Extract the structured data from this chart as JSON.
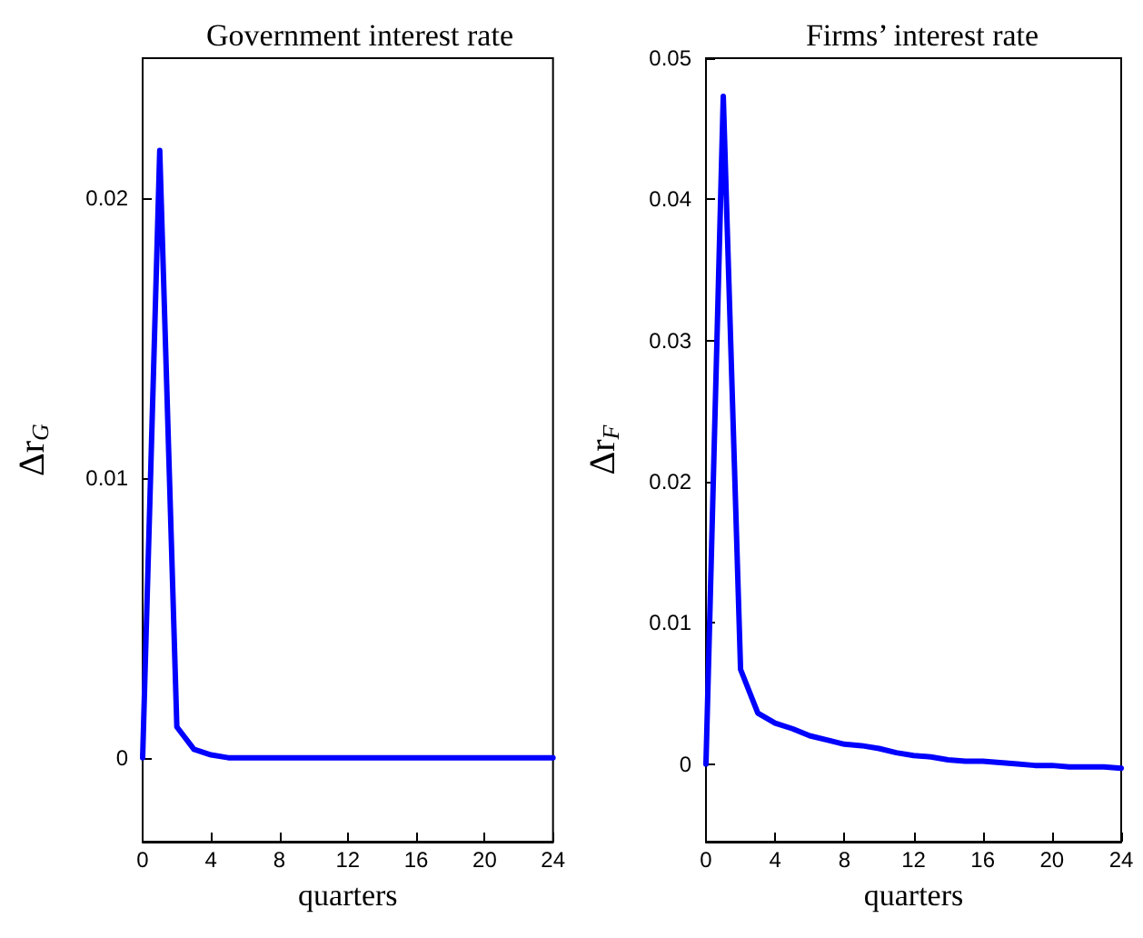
{
  "chart_data": [
    {
      "type": "line",
      "title": "Government interest rate",
      "xlabel": "quarters",
      "ylabel": "Δr$_{G}$",
      "x": [
        0,
        1,
        2,
        3,
        4,
        5,
        6,
        7,
        8,
        9,
        10,
        11,
        12,
        13,
        14,
        15,
        16,
        17,
        18,
        19,
        20,
        21,
        22,
        23,
        24
      ],
      "series": [
        {
          "color": "#0000ff",
          "values": [
            0,
            0.0217,
            0.0011,
            0.0003,
            0.0001,
            0,
            0,
            0,
            0,
            0,
            0,
            0,
            0,
            0,
            0,
            0,
            0,
            0,
            0,
            0,
            0,
            0,
            0,
            0,
            0
          ]
        }
      ],
      "xlim": [
        0,
        24
      ],
      "xticks": [
        0,
        4,
        8,
        12,
        16,
        20,
        24
      ],
      "ylim": [
        -0.003,
        0.025
      ],
      "yticks": [
        0,
        0.01,
        0.02
      ],
      "grid": false,
      "marker": "none",
      "line_style": "solid"
    },
    {
      "type": "line",
      "title": "Firms’ interest rate",
      "xlabel": "quarters",
      "ylabel": "Δr$_{F}$",
      "x": [
        0,
        1,
        2,
        3,
        4,
        5,
        6,
        7,
        8,
        9,
        10,
        11,
        12,
        13,
        14,
        15,
        16,
        17,
        18,
        19,
        20,
        21,
        22,
        23,
        24
      ],
      "series": [
        {
          "color": "#0000ff",
          "values": [
            0,
            0.0473,
            0.0067,
            0.0036,
            0.0029,
            0.0025,
            0.002,
            0.0017,
            0.0014,
            0.0013,
            0.0011,
            0.0008,
            0.0006,
            0.0005,
            0.0003,
            0.0002,
            0.0002,
            0.0001,
            0,
            -0.0001,
            -0.0001,
            -0.0002,
            -0.0002,
            -0.0002,
            -0.0003
          ]
        }
      ],
      "xlim": [
        0,
        24
      ],
      "xticks": [
        0,
        4,
        8,
        12,
        16,
        20,
        24
      ],
      "ylim": [
        -0.0055,
        0.05
      ],
      "yticks": [
        0,
        0.01,
        0.02,
        0.03,
        0.04,
        0.05
      ],
      "grid": false,
      "marker": "none",
      "line_style": "solid"
    }
  ]
}
